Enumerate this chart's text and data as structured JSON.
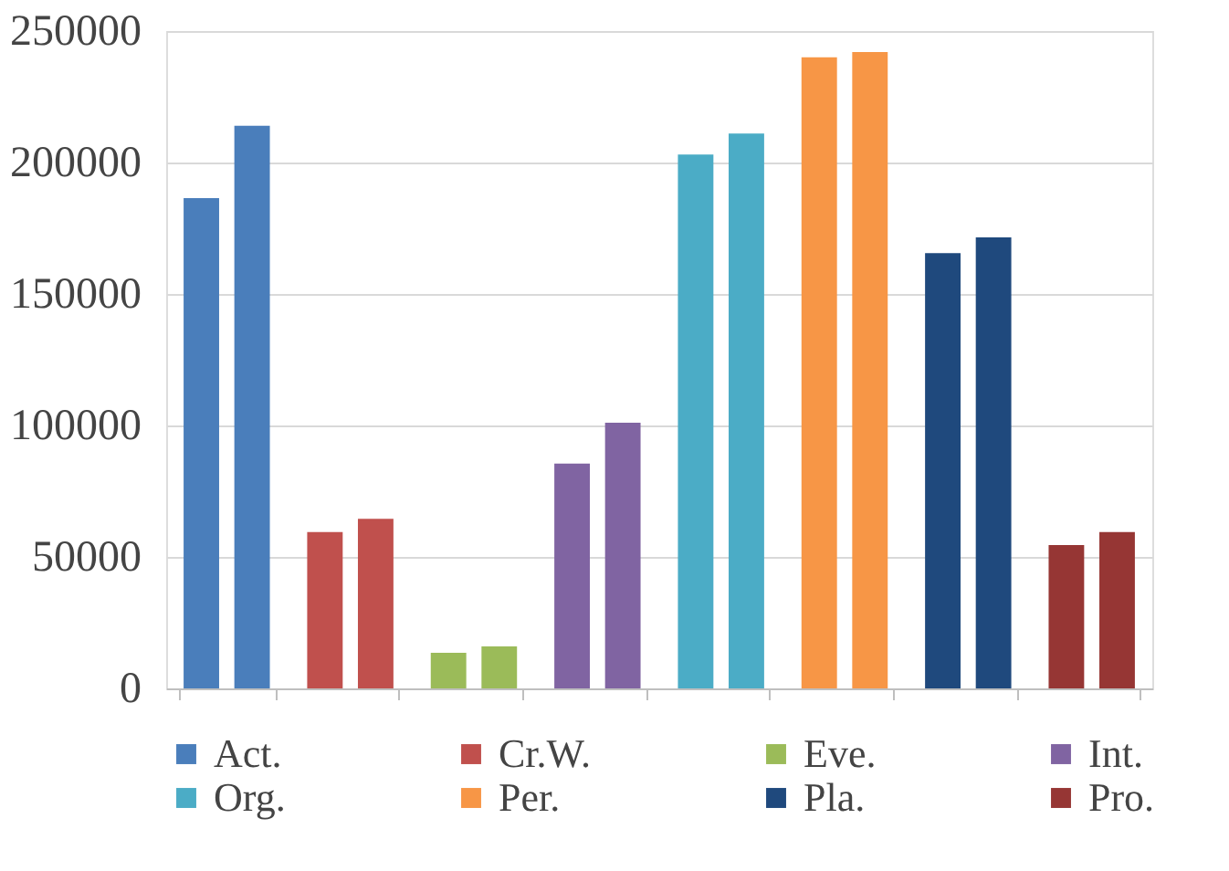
{
  "chart_data": {
    "type": "bar",
    "categories": [
      null,
      null,
      null,
      null,
      null,
      null,
      null,
      null
    ],
    "series": [
      {
        "name": "Act.",
        "color": "#4a7ebb",
        "values": [
          186500,
          null,
          null,
          null,
          null,
          null,
          null,
          null
        ]
      },
      {
        "color": "#4a7ebb",
        "values": [
          214000,
          null,
          null,
          null,
          null,
          null,
          null,
          null
        ]
      },
      {
        "name": "Cr.W.",
        "color": "#c0504d",
        "values": [
          null,
          59500,
          null,
          null,
          null,
          null,
          null,
          null
        ]
      },
      {
        "color": "#c0504d",
        "values": [
          null,
          64500,
          null,
          null,
          null,
          null,
          null,
          null
        ]
      },
      {
        "name": "Eve.",
        "color": "#9bbb59",
        "values": [
          null,
          null,
          13500,
          null,
          null,
          null,
          null,
          null
        ]
      },
      {
        "color": "#9bbb59",
        "values": [
          null,
          null,
          16000,
          null,
          null,
          null,
          null,
          null
        ]
      },
      {
        "name": "Int.",
        "color": "#8064a2",
        "values": [
          null,
          null,
          null,
          85500,
          null,
          null,
          null,
          null
        ]
      },
      {
        "color": "#8064a2",
        "values": [
          null,
          null,
          null,
          101000,
          null,
          null,
          null,
          null
        ]
      },
      {
        "name": "Org.",
        "color": "#4bacc6",
        "values": [
          null,
          null,
          null,
          null,
          203000,
          null,
          null,
          null
        ]
      },
      {
        "color": "#4bacc6",
        "values": [
          null,
          null,
          null,
          null,
          211000,
          null,
          null,
          null
        ]
      },
      {
        "name": "Per.",
        "color": "#f79646",
        "values": [
          null,
          null,
          null,
          null,
          null,
          240000,
          null,
          null
        ]
      },
      {
        "color": "#f79646",
        "values": [
          null,
          null,
          null,
          null,
          null,
          242000,
          null,
          null
        ]
      },
      {
        "name": "Pla.",
        "color": "#1f497d",
        "values": [
          null,
          null,
          null,
          null,
          null,
          null,
          165500,
          null
        ]
      },
      {
        "color": "#1f497d",
        "values": [
          null,
          null,
          null,
          null,
          null,
          null,
          171500,
          null
        ]
      },
      {
        "name": "Pro.",
        "color": "#963634",
        "values": [
          null,
          null,
          null,
          null,
          null,
          null,
          null,
          54500
        ]
      },
      {
        "color": "#963634",
        "values": [
          null,
          null,
          null,
          null,
          null,
          null,
          null,
          59500
        ]
      }
    ],
    "ylim": [
      0,
      250000
    ],
    "yticks": [
      0,
      50000,
      100000,
      150000,
      200000,
      250000
    ],
    "grid": "y",
    "legend": "bottom",
    "tick_labels": "y"
  }
}
